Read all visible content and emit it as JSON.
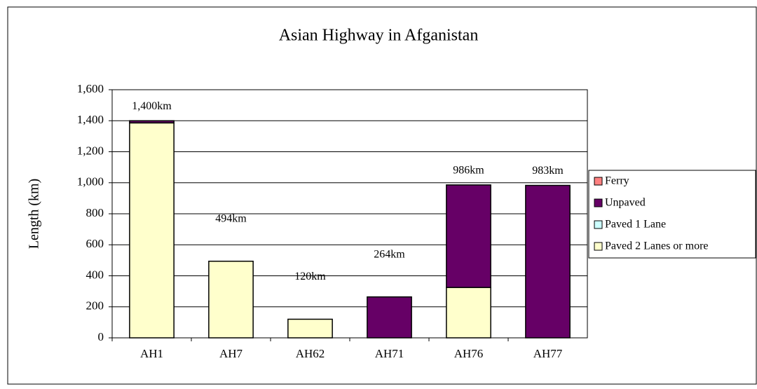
{
  "chart_data": {
    "type": "stacked_bar",
    "title": "Asian Highway in Afganistan",
    "y_label": "Length (km)",
    "categories": [
      "AH1",
      "AH7",
      "AH62",
      "AH71",
      "AH76",
      "AH77"
    ],
    "series": [
      {
        "name": "Paved 2 Lanes or more",
        "color": "#ffffcc",
        "values": [
          1386,
          494,
          120,
          0,
          325,
          0
        ]
      },
      {
        "name": "Paved 1 Lane",
        "color": "#ccffff",
        "values": [
          0,
          0,
          0,
          0,
          0,
          0
        ]
      },
      {
        "name": "Unpaved",
        "color": "#660066",
        "values": [
          14,
          0,
          0,
          264,
          661,
          983
        ]
      },
      {
        "name": "Ferry",
        "color": "#ff8080",
        "values": [
          0,
          0,
          0,
          0,
          0,
          0
        ]
      }
    ],
    "totals": [
      1400,
      494,
      120,
      264,
      986,
      983
    ],
    "total_labels": [
      "1,400km",
      "494km",
      "120km",
      "264km",
      "986km",
      "983km"
    ],
    "ylim": [
      0,
      1600
    ],
    "yticks": [
      0,
      200,
      400,
      600,
      800,
      {
        "value": 1000,
        "label": "1,000"
      },
      {
        "value": 1200,
        "label": "1,200"
      },
      {
        "value": 1400,
        "label": "1,400"
      },
      {
        "value": 1600,
        "label": "1,600"
      }
    ],
    "grid": true,
    "legend": "right"
  }
}
